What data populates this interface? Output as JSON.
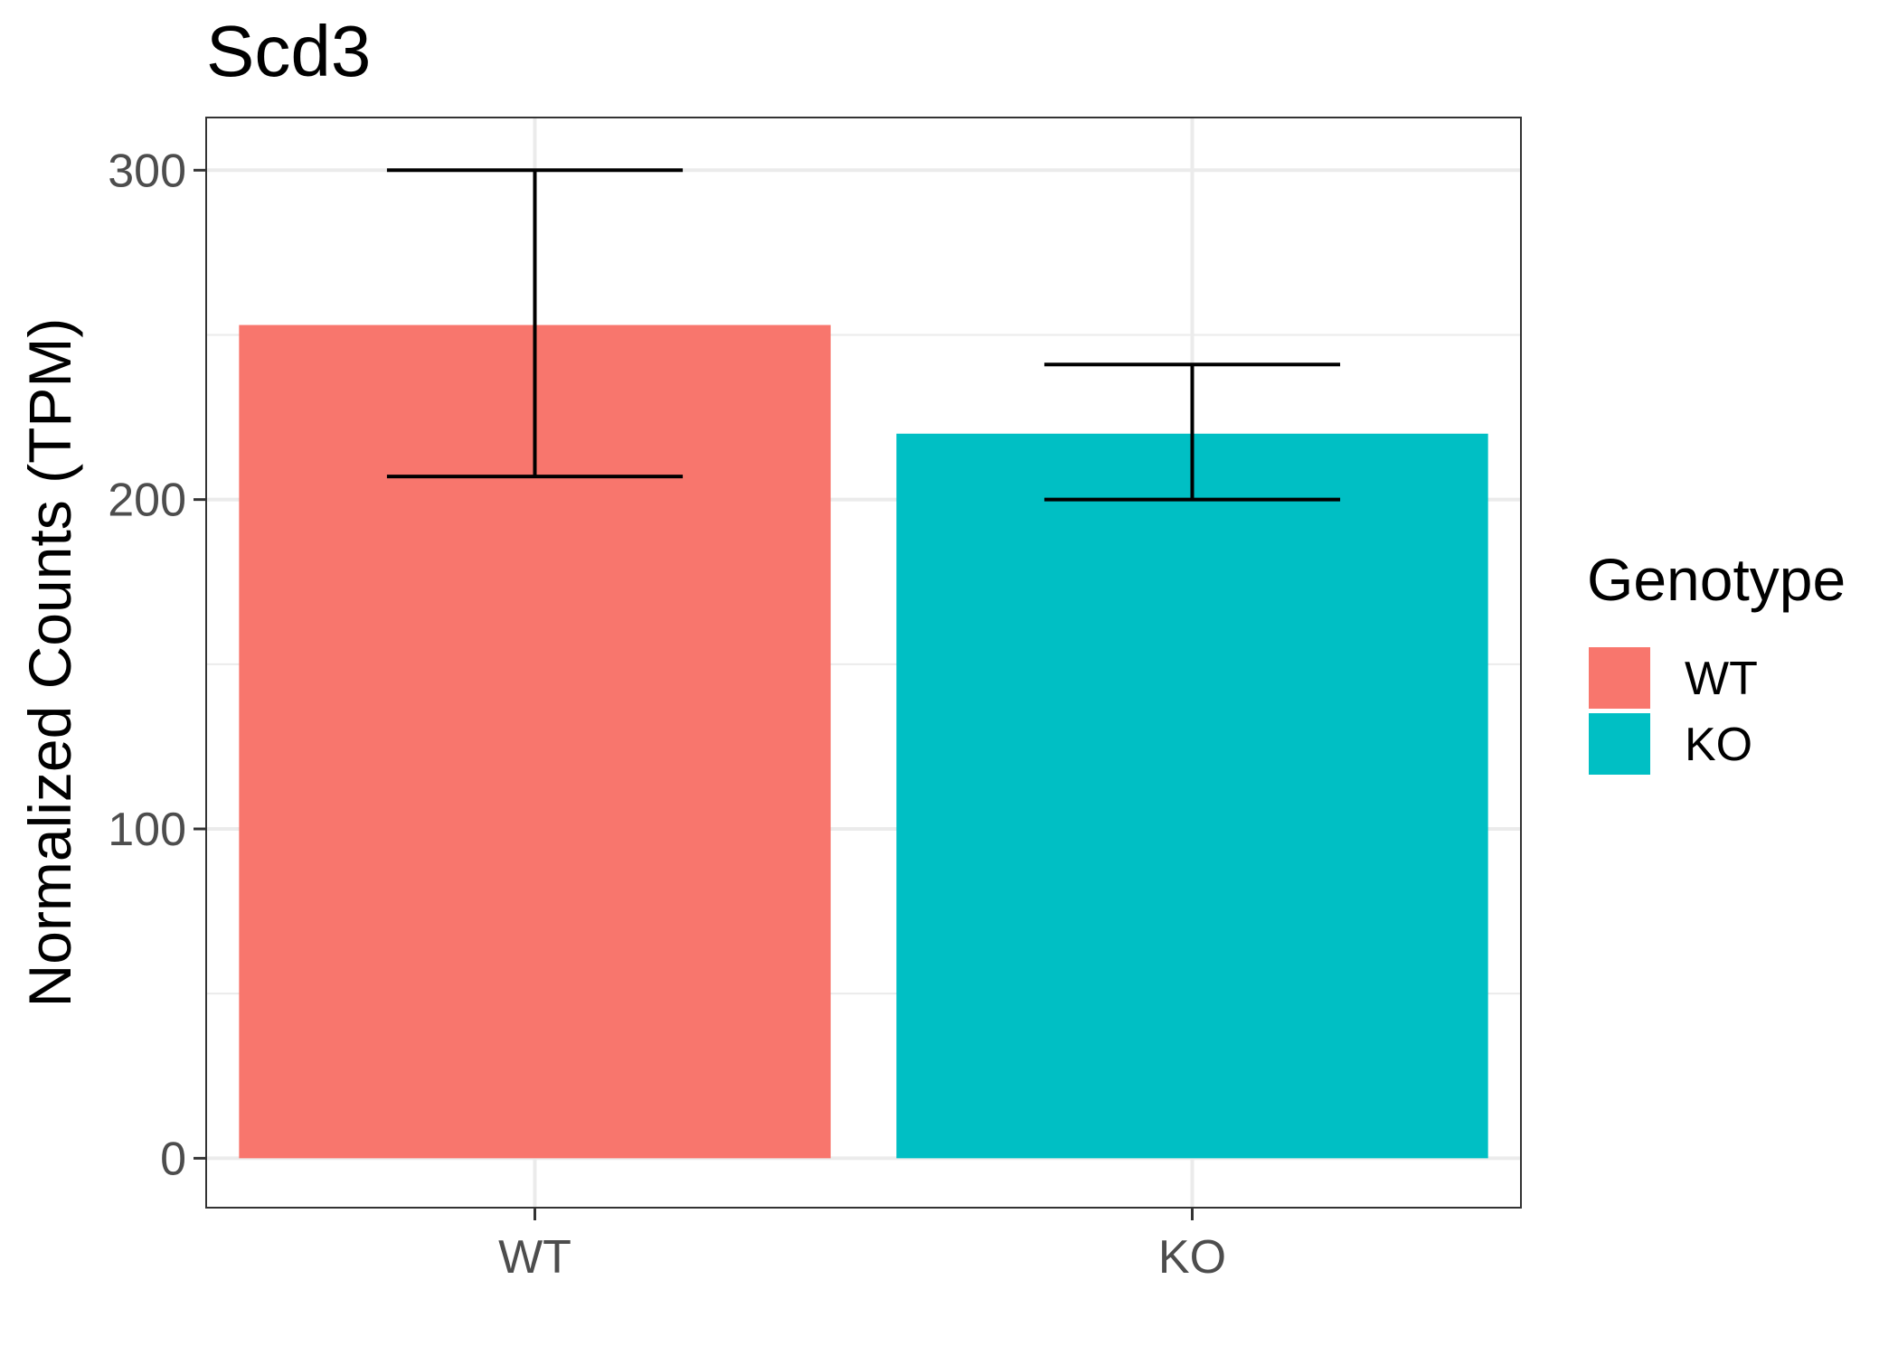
{
  "chart_data": {
    "type": "bar",
    "title": "Scd3",
    "xlabel": "",
    "ylabel": "Normalized Counts (TPM)",
    "categories": [
      "WT",
      "KO"
    ],
    "values": [
      253,
      220
    ],
    "error_low": [
      207,
      200
    ],
    "error_high": [
      300,
      241
    ],
    "colors": [
      "#F8766D",
      "#00BFC4"
    ],
    "ylim": [
      -15,
      316
    ],
    "yticks": [
      0,
      100,
      200,
      300
    ],
    "yticks_minor": [
      50,
      150,
      250
    ],
    "grid": true,
    "legend": {
      "title": "Genotype",
      "placement": "right",
      "entries": [
        {
          "label": "WT",
          "color": "#F8766D"
        },
        {
          "label": "KO",
          "color": "#00BFC4"
        }
      ]
    }
  }
}
